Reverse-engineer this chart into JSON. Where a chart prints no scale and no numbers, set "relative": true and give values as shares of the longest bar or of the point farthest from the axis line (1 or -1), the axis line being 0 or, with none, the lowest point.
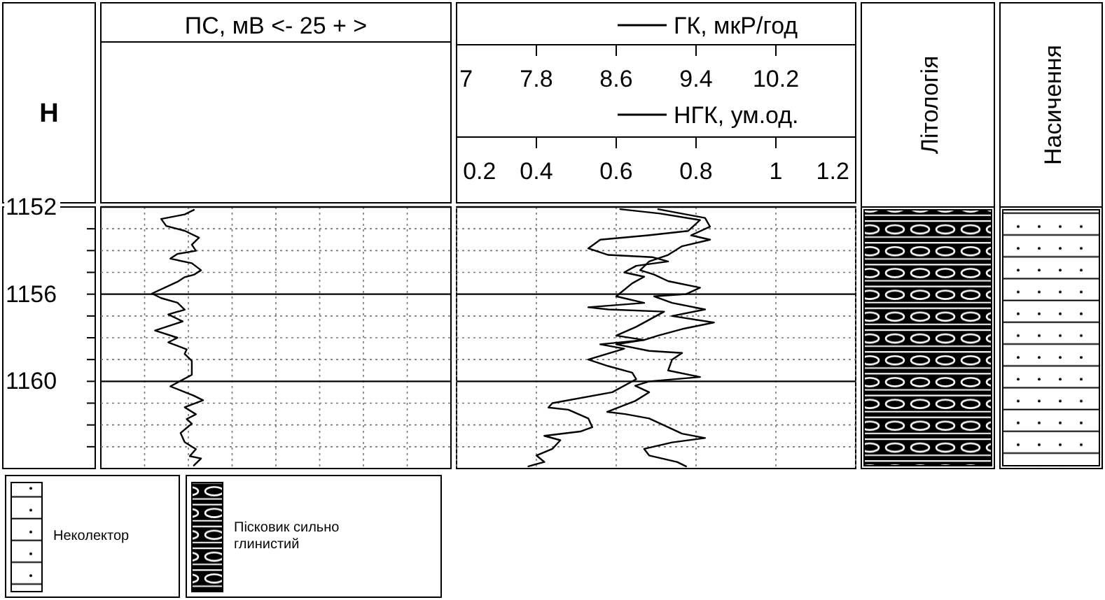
{
  "chart_data": [
    {
      "type": "line",
      "orientation": "horizontal",
      "title": "ПС, мВ <- 25 + >",
      "ylabel": "Н",
      "relative": true,
      "ylim": [
        1164,
        1152
      ],
      "yticks": [
        1152,
        {
          "value": 1153,
          "label": null
        },
        {
          "value": 1154,
          "label": null
        },
        {
          "value": 1155,
          "label": null
        },
        1156,
        {
          "value": 1157,
          "label": null
        },
        {
          "value": 1158,
          "label": null
        },
        {
          "value": 1159,
          "label": null
        },
        1160,
        {
          "value": 1161,
          "label": null
        },
        {
          "value": 1162,
          "label": null
        },
        {
          "value": 1163,
          "label": null
        }
      ],
      "grid": true,
      "series": [
        {
          "color": "#000000",
          "x": [
            1152.13,
            1152.34,
            1152.55,
            1152.87,
            1153.09,
            1153.41,
            1153.73,
            1154.01,
            1154.15,
            1154.37,
            1154.58,
            1154.9,
            1155.11,
            1155.22,
            1155.43,
            1155.97,
            1156.18,
            1156.39,
            1156.71,
            1156.93,
            1157.25,
            1157.67,
            1158.0,
            1158.21,
            1158.53,
            1158.74,
            1159.06,
            1159.7,
            1160.23,
            1160.66,
            1160.87,
            1161.19,
            1161.51,
            1161.73,
            1161.94,
            1162.37,
            1162.79,
            1163.11,
            1163.43,
            1163.54,
            1163.86
          ],
          "values": [
            0.91,
            0.82,
            0.59,
            0.64,
            0.82,
            0.96,
            0.89,
            0.93,
            0.75,
            0.68,
            0.89,
            0.98,
            0.91,
            0.82,
            0.75,
            0.5,
            0.59,
            0.75,
            0.82,
            0.66,
            0.8,
            0.53,
            0.75,
            0.66,
            0.84,
            0.82,
            0.89,
            0.89,
            0.68,
            0.91,
            1,
            0.82,
            0.93,
            0.84,
            0.89,
            0.78,
            0.82,
            0.93,
            0.87,
            0.98,
            0.91
          ]
        }
      ]
    },
    {
      "type": "line",
      "orientation": "horizontal",
      "legend": "top",
      "tick_labels": "x",
      "x2lim": [
        7,
        11
      ],
      "x2ticks": [
        7,
        7.8,
        8.6,
        9.4,
        10.2
      ],
      "xlim": [
        0.2,
        1.2
      ],
      "xticks": [
        0.2,
        0.4,
        0.6,
        0.8,
        1,
        1.2
      ],
      "ylim": [
        1164,
        1152
      ],
      "yticks": [
        1152,
        {
          "value": 1153,
          "label": null
        },
        {
          "value": 1154,
          "label": null
        },
        {
          "value": 1155,
          "label": null
        },
        1156,
        {
          "value": 1157,
          "label": null
        },
        {
          "value": 1158,
          "label": null
        },
        {
          "value": 1159,
          "label": null
        },
        1160,
        {
          "value": 1161,
          "label": null
        },
        {
          "value": 1162,
          "label": null
        },
        {
          "value": 1163,
          "label": null
        }
      ],
      "grid": true,
      "series": [
        {
          "name": "ГК, мкР/год",
          "axis": "x2",
          "color": "#000000",
          "x": [
            1152.1,
            1152.5,
            1152.9,
            1153.3,
            1153.5,
            1153.8,
            1154.2,
            1154.5,
            1154.9,
            1155.1,
            1155.4,
            1155.7,
            1156.0,
            1156.1,
            1156.4,
            1156.7,
            1157.0,
            1157.3,
            1157.6,
            1157.9,
            1158.1,
            1158.3,
            1158.6,
            1158.7,
            1159.0,
            1159.5,
            1159.8,
            1160.0,
            1160.2,
            1160.5,
            1160.9,
            1161.4,
            1161.5,
            1161.7,
            1162.4,
            1162.6,
            1162.8,
            1163.1,
            1163.4,
            1163.7,
            1163.9
          ],
          "values": [
            9.02,
            9.49,
            9.54,
            9.35,
            9.54,
            9.26,
            9.12,
            8.93,
            8.84,
            8.98,
            9.12,
            9.44,
            9.3,
            8.98,
            9.16,
            9.49,
            9.16,
            9.58,
            9.26,
            9.02,
            8.88,
            8.6,
            8.93,
            9.26,
            9.16,
            9.12,
            9.44,
            8.93,
            8.79,
            8.93,
            8.79,
            8.51,
            8.69,
            8.93,
            9.26,
            9.49,
            9.16,
            8.88,
            8.93,
            9.21,
            9.3
          ]
        },
        {
          "name": "НГК, ум.од.",
          "color": "#000000",
          "x": [
            1152.1,
            1152.3,
            1152.6,
            1153.1,
            1153.3,
            1153.5,
            1153.9,
            1154.2,
            1154.3,
            1154.5,
            1154.7,
            1155.0,
            1155.2,
            1155.5,
            1156.1,
            1156.4,
            1156.6,
            1156.7,
            1156.8,
            1157.5,
            1157.9,
            1158.1,
            1158.3,
            1158.5,
            1159.0,
            1159.3,
            1159.6,
            1159.9,
            1160.5,
            1161.0,
            1161.2,
            1161.3,
            1161.7,
            1162.1,
            1162.3,
            1162.5,
            1162.7,
            1163.1,
            1163.4,
            1163.7,
            1163.9
          ],
          "values": [
            0.61,
            0.71,
            0.81,
            0.78,
            0.68,
            0.56,
            0.53,
            0.58,
            0.69,
            0.73,
            0.65,
            0.62,
            0.67,
            0.64,
            0.6,
            0.67,
            0.53,
            0.58,
            0.72,
            0.65,
            0.6,
            0.67,
            0.56,
            0.62,
            0.53,
            0.58,
            0.64,
            0.65,
            0.59,
            0.44,
            0.43,
            0.48,
            0.53,
            0.54,
            0.51,
            0.42,
            0.46,
            0.44,
            0.4,
            0.42,
            0.38
          ]
        }
      ]
    },
    {
      "type": "other",
      "categories": [
        "Літологія",
        "Насичення"
      ],
      "annotations": [
        "Неколектор",
        "Пісковик сильно глинистий"
      ]
    }
  ]
}
